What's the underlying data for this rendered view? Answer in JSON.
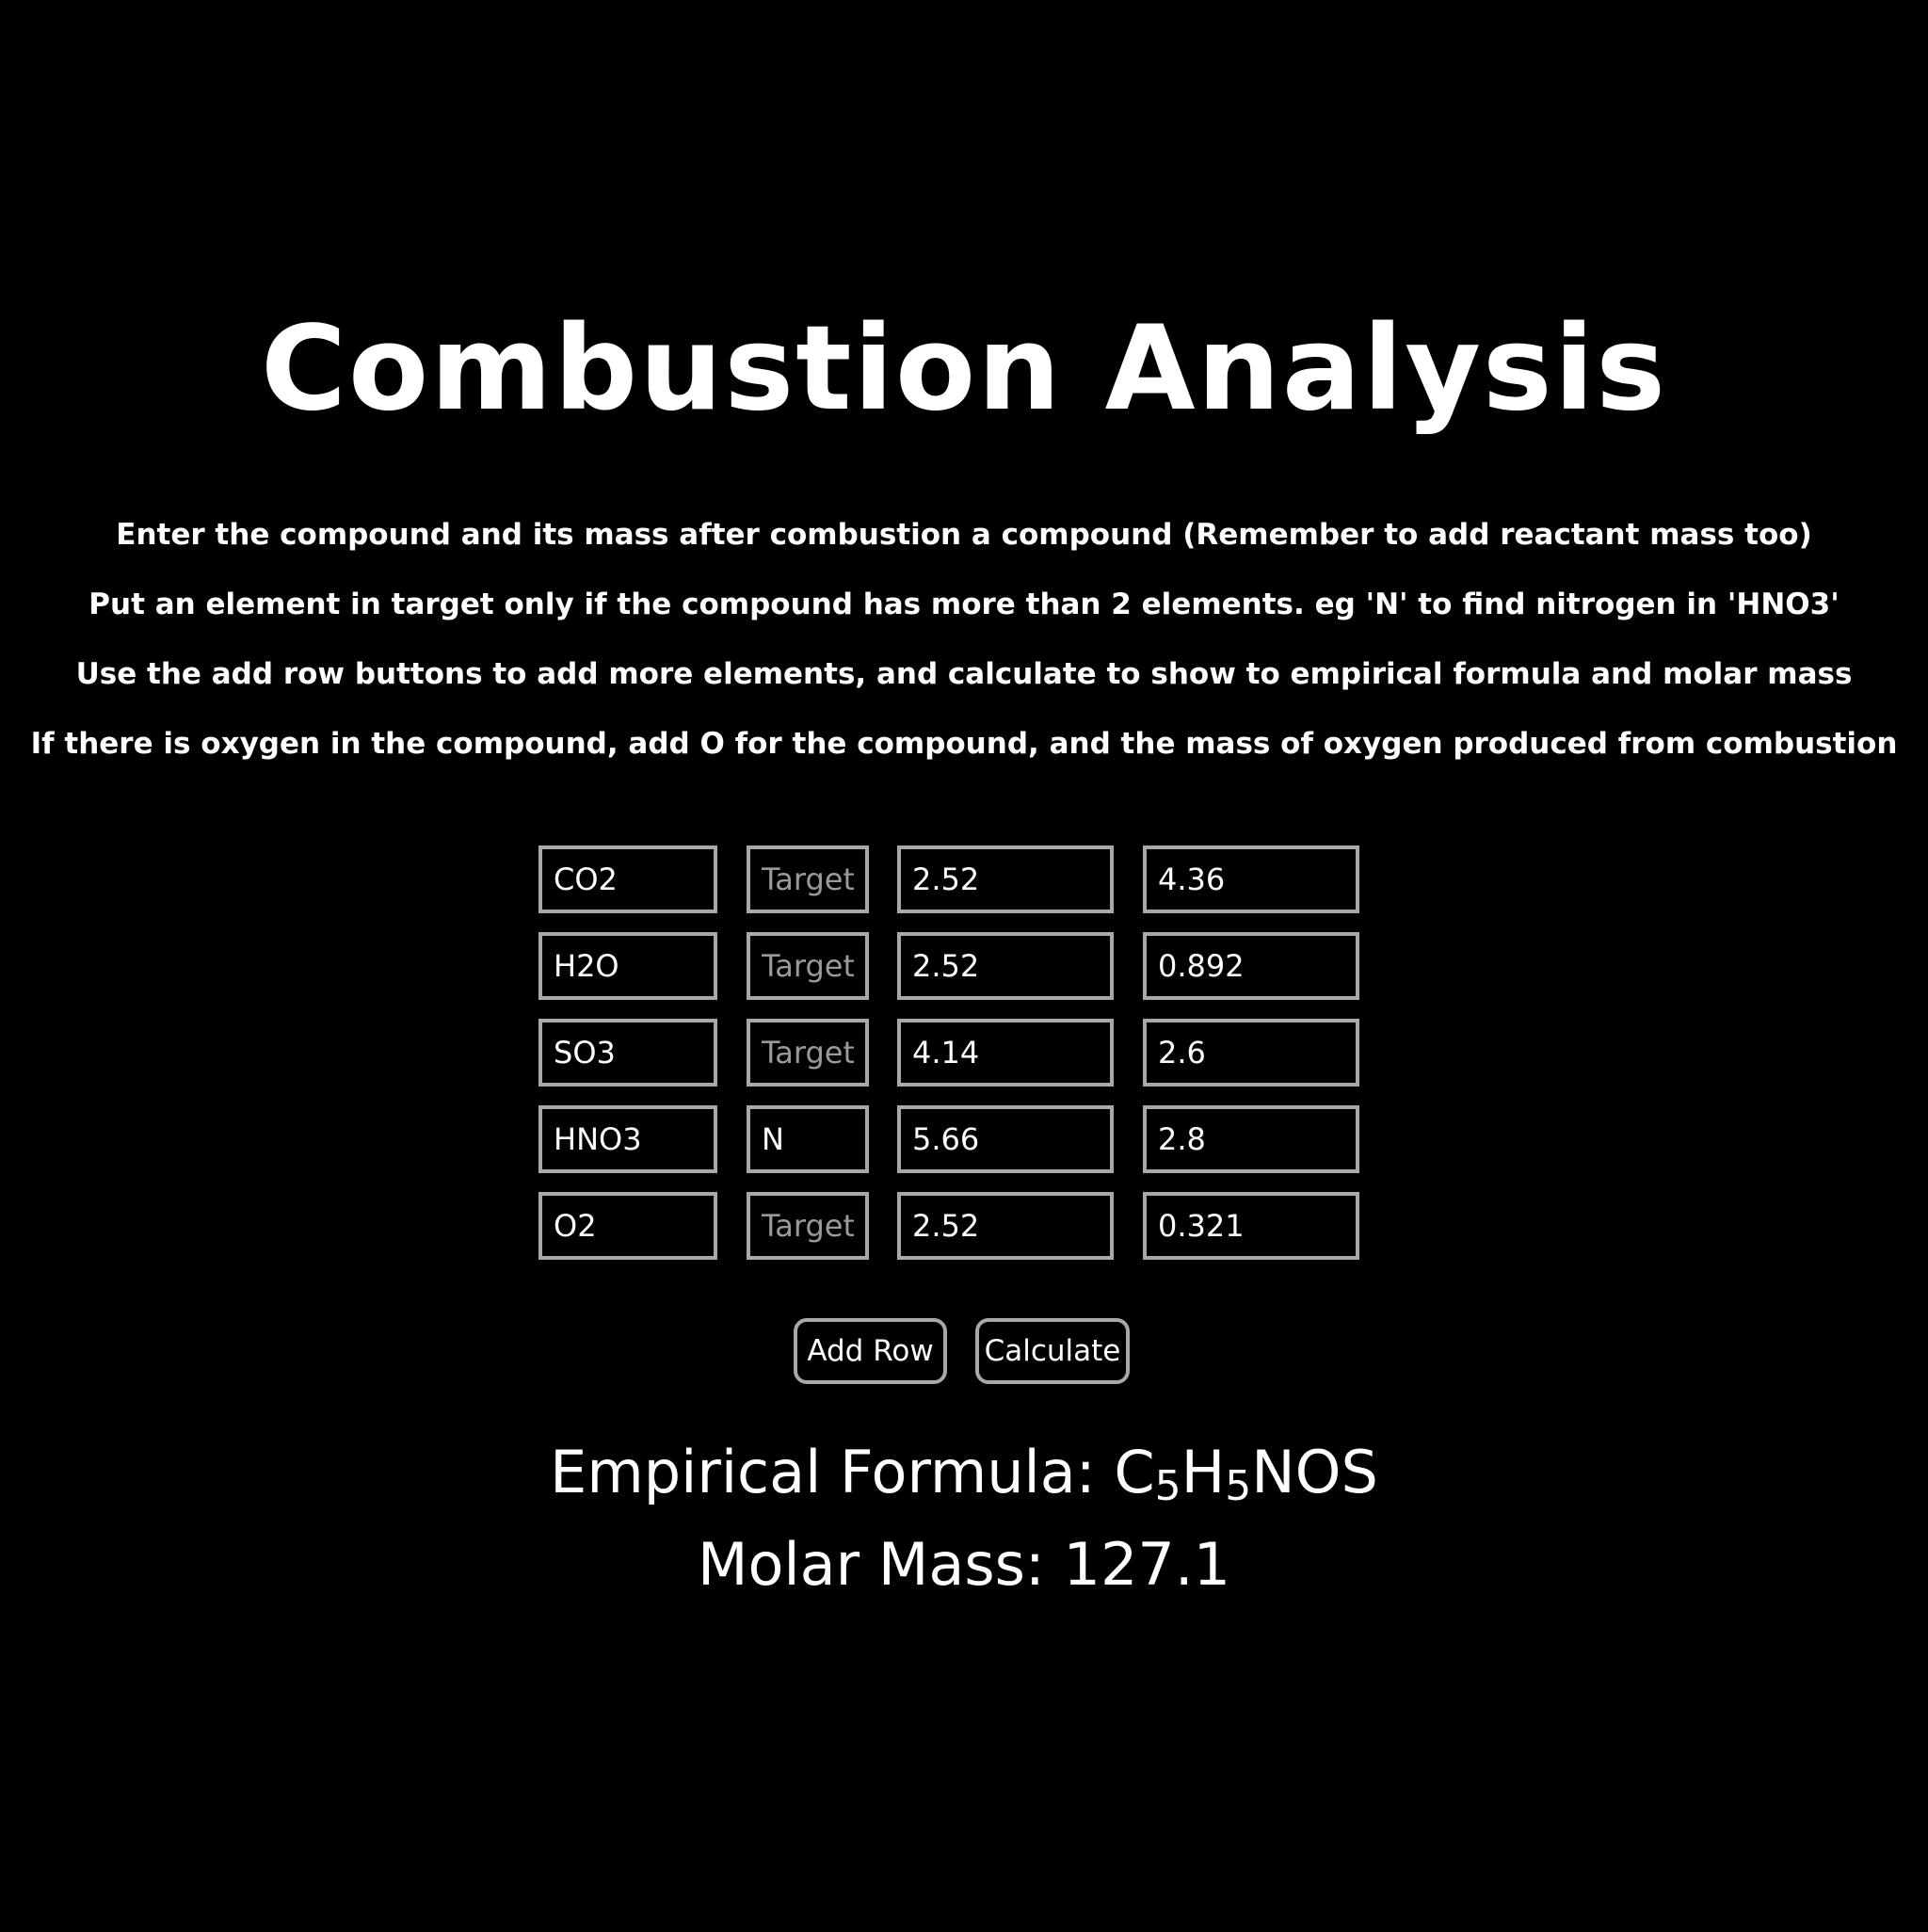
{
  "title": "Combustion Analysis",
  "instructions": [
    "Enter the compound and its mass after combustion a compound (Remember to add reactant mass too)",
    "Put an element in target only if the compound has more than 2 elements. eg 'N' to find nitrogen in 'HNO3'",
    "Use the add row buttons to add more elements, and calculate to show to empirical formula and molar mass",
    "If there is oxygen in the compound, add O for the compound, and the mass of oxygen produced from combustion"
  ],
  "target_placeholder": "Target",
  "rows": [
    {
      "compound": "CO2",
      "target": "",
      "mass_reactant": "2.52",
      "mass_product": "4.36"
    },
    {
      "compound": "H2O",
      "target": "",
      "mass_reactant": "2.52",
      "mass_product": "0.892"
    },
    {
      "compound": "SO3",
      "target": "",
      "mass_reactant": "4.14",
      "mass_product": "2.6"
    },
    {
      "compound": "HNO3",
      "target": "N",
      "mass_reactant": "5.66",
      "mass_product": "2.8"
    },
    {
      "compound": "O2",
      "target": "",
      "mass_reactant": "2.52",
      "mass_product": "0.321"
    }
  ],
  "buttons": {
    "add_row": "Add Row",
    "calculate": "Calculate"
  },
  "results": {
    "formula_label": "Empirical Formula: ",
    "formula_parts": [
      {
        "text": "C",
        "sub": "5"
      },
      {
        "text": "H",
        "sub": "5"
      },
      {
        "text": "NOS",
        "sub": ""
      }
    ],
    "molar_mass_label": "Molar Mass: ",
    "molar_mass_value": "127.1"
  },
  "colors": {
    "background": "#000000",
    "text": "#ffffff",
    "border": "#a8a8a8",
    "placeholder": "#9a9a9a"
  }
}
